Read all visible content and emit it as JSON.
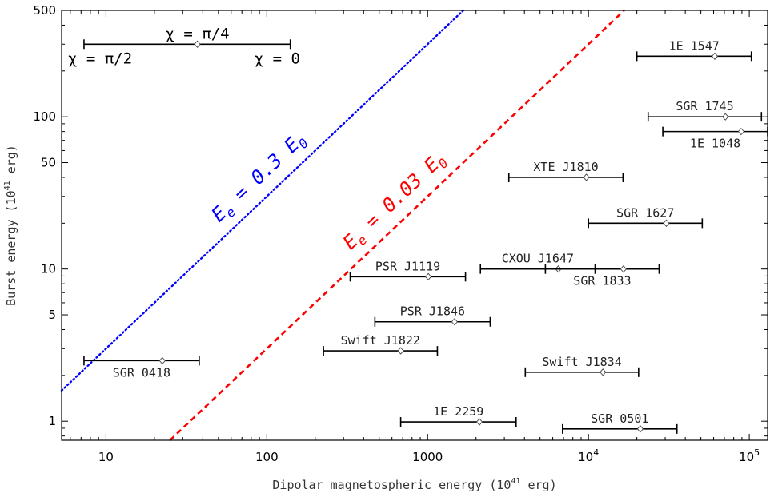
{
  "chart_data": {
    "type": "scatter",
    "xlabel": "Dipolar magnetospheric energy (10",
    "xlabel_sup": "41",
    "xlabel_end": " erg)",
    "ylabel": "Burst energy (10",
    "ylabel_sup": "41",
    "ylabel_end": " erg)",
    "x_scale": "log",
    "y_scale": "log",
    "xlim": [
      5.3,
      130000
    ],
    "ylim": [
      0.75,
      500
    ],
    "x_ticks": [
      {
        "value": 10,
        "base": "10",
        "exp": ""
      },
      {
        "value": 100,
        "base": "100",
        "exp": ""
      },
      {
        "value": 1000,
        "base": "1000",
        "exp": ""
      },
      {
        "value": 10000,
        "base": "10",
        "exp": "4"
      },
      {
        "value": 100000,
        "base": "10",
        "exp": "5"
      }
    ],
    "y_ticks": [
      {
        "value": 1,
        "label": "1"
      },
      {
        "value": 5,
        "label": "5"
      },
      {
        "value": 10,
        "label": "10"
      },
      {
        "value": 50,
        "label": "50"
      },
      {
        "value": 100,
        "label": "100"
      },
      {
        "value": 500,
        "label": "500"
      }
    ],
    "grid": false,
    "points": [
      {
        "name": "SGR 0418",
        "x": 22.4,
        "y": 2.5,
        "x_range": [
          7.3,
          38
        ],
        "label_pos": "below"
      },
      {
        "name": "Swift J1822",
        "x": 680,
        "y": 2.9,
        "x_range": [
          225,
          1150
        ],
        "label_pos": "above"
      },
      {
        "name": "PSR J1846",
        "x": 1470,
        "y": 4.5,
        "x_range": [
          470,
          2450
        ],
        "label_pos": "above"
      },
      {
        "name": "PSR J1119",
        "x": 1010,
        "y": 8.9,
        "x_range": [
          330,
          1720
        ],
        "label_pos": "above"
      },
      {
        "name": "1E 2259",
        "x": 2100,
        "y": 0.99,
        "x_range": [
          680,
          3550
        ],
        "label_pos": "above"
      },
      {
        "name": "CXOU J1647",
        "x": 6500,
        "y": 10.0,
        "x_range": [
          2130,
          11000
        ],
        "label_pos": "above"
      },
      {
        "name": "SGR 1833",
        "x": 16500,
        "y": 10.0,
        "x_range": [
          5400,
          27500
        ],
        "label_pos": "below"
      },
      {
        "name": "XTE J1810",
        "x": 9700,
        "y": 40,
        "x_range": [
          3200,
          16400
        ],
        "label_pos": "above"
      },
      {
        "name": "SGR 1627",
        "x": 30500,
        "y": 20,
        "x_range": [
          10000,
          51000
        ],
        "label_pos": "above"
      },
      {
        "name": "Swift J1834",
        "x": 12300,
        "y": 2.1,
        "x_range": [
          4050,
          20500
        ],
        "label_pos": "above"
      },
      {
        "name": "SGR 0501",
        "x": 21000,
        "y": 0.89,
        "x_range": [
          6900,
          35500
        ],
        "label_pos": "above"
      },
      {
        "name": "SGR 1745",
        "x": 71000,
        "y": 100,
        "x_range": [
          23500,
          119000
        ],
        "label_pos": "above"
      },
      {
        "name": "1E 1048",
        "x": 89000,
        "y": 80,
        "x_range": [
          29000,
          130000
        ],
        "label_pos": "below"
      },
      {
        "name": "1E 1547",
        "x": 61000,
        "y": 250,
        "x_range": [
          20000,
          103000
        ],
        "label_pos": "above"
      }
    ],
    "lines": [
      {
        "label_prefix": "E",
        "label_sub": "e",
        "label_suffix": " = 0.3 E",
        "label_sub2": "0",
        "coefficient": 0.3,
        "color": "#0000ff",
        "style": "dotted"
      },
      {
        "label_prefix": "E",
        "label_sub": "e",
        "label_suffix": " = 0.03 E",
        "label_sub2": "0",
        "coefficient": 0.03,
        "color": "#ff0000",
        "style": "dashed"
      }
    ],
    "legend": {
      "placement": "top-left",
      "labels": [
        "χ = π/4",
        "χ = π/2",
        "χ = 0"
      ],
      "demo_x": 37,
      "demo_y": 300,
      "demo_range": [
        7.3,
        140
      ]
    }
  }
}
